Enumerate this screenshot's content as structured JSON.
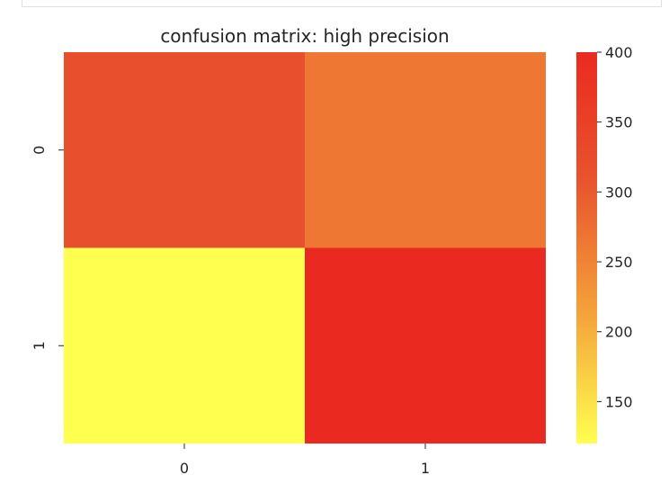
{
  "cell_border_color": "#e0e0e0",
  "chart_data": {
    "type": "heatmap",
    "title": "confusion matrix: high precision",
    "x_categories": [
      "0",
      "1"
    ],
    "y_categories": [
      "0",
      "1"
    ],
    "values": [
      [
        320,
        265
      ],
      [
        120,
        400
      ]
    ],
    "colormap": [
      "#ffff50",
      "#f4a23a",
      "#e8552e",
      "#ea2a20"
    ],
    "colorbar": {
      "vmin": 120,
      "vmax": 400,
      "ticks": [
        150,
        200,
        250,
        300,
        350,
        400
      ],
      "tick_labels": [
        "150",
        "200",
        "250",
        "300",
        "350",
        "400"
      ]
    },
    "xlabel": "",
    "ylabel": ""
  }
}
